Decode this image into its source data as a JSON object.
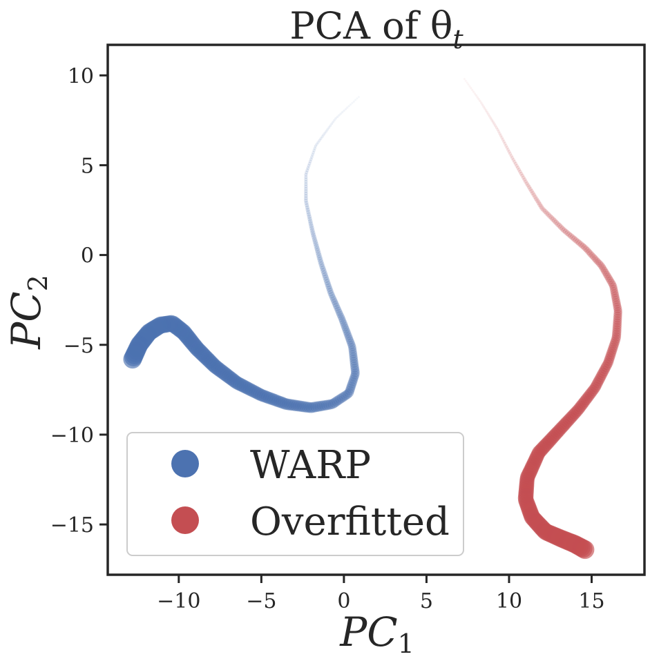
{
  "chart_data": {
    "type": "scatter",
    "title": "PCA of θ",
    "title_subscript": "t",
    "xlabel": "PC",
    "xlabel_subscript": "1",
    "ylabel": "PC",
    "ylabel_subscript": "2",
    "xlim": [
      -14.3,
      18.2
    ],
    "ylim": [
      -17.8,
      11.7
    ],
    "xticks": [
      -10,
      -5,
      0,
      5,
      10,
      15
    ],
    "yticks": [
      10,
      5,
      0,
      -5,
      -10,
      -15
    ],
    "xtick_labels": [
      "−10",
      "−5",
      "0",
      "5",
      "10",
      "15"
    ],
    "ytick_labels": [
      "10",
      "5",
      "0",
      "−5",
      "−10",
      "−15"
    ],
    "grid": false,
    "legend": "lower-left",
    "series": [
      {
        "name": "WARP",
        "color": "#4C72B0",
        "path": [
          [
            0.9,
            8.8
          ],
          [
            -0.5,
            7.6
          ],
          [
            -1.7,
            6.1
          ],
          [
            -2.3,
            4.5
          ],
          [
            -2.3,
            3.0
          ],
          [
            -1.9,
            1.3
          ],
          [
            -1.4,
            -0.4
          ],
          [
            -0.8,
            -2.1
          ],
          [
            -0.1,
            -3.6
          ],
          [
            0.5,
            -5.1
          ],
          [
            0.7,
            -6.6
          ],
          [
            0.3,
            -7.7
          ],
          [
            -0.7,
            -8.3
          ],
          [
            -2.0,
            -8.5
          ],
          [
            -3.5,
            -8.3
          ],
          [
            -5.0,
            -7.8
          ],
          [
            -6.5,
            -7.1
          ],
          [
            -7.8,
            -6.2
          ],
          [
            -8.9,
            -5.2
          ],
          [
            -9.7,
            -4.3
          ],
          [
            -10.4,
            -3.8
          ],
          [
            -11.1,
            -3.9
          ],
          [
            -11.8,
            -4.3
          ],
          [
            -12.4,
            -5.0
          ],
          [
            -12.8,
            -5.8
          ]
        ]
      },
      {
        "name": "Overfitted",
        "color": "#C44E52",
        "path": [
          [
            7.3,
            9.8
          ],
          [
            8.3,
            8.5
          ],
          [
            9.3,
            7.0
          ],
          [
            10.2,
            5.4
          ],
          [
            11.0,
            4.1
          ],
          [
            12.0,
            2.6
          ],
          [
            13.3,
            1.4
          ],
          [
            14.6,
            0.4
          ],
          [
            15.6,
            -0.6
          ],
          [
            16.3,
            -1.7
          ],
          [
            16.6,
            -3.1
          ],
          [
            16.5,
            -4.6
          ],
          [
            16.0,
            -6.0
          ],
          [
            15.2,
            -7.4
          ],
          [
            14.2,
            -8.6
          ],
          [
            13.0,
            -9.8
          ],
          [
            11.8,
            -11.0
          ],
          [
            11.1,
            -12.4
          ],
          [
            11.0,
            -13.6
          ],
          [
            11.4,
            -14.6
          ],
          [
            12.2,
            -15.4
          ],
          [
            13.2,
            -15.8
          ],
          [
            14.0,
            -16.1
          ],
          [
            14.6,
            -16.4
          ]
        ]
      }
    ]
  }
}
